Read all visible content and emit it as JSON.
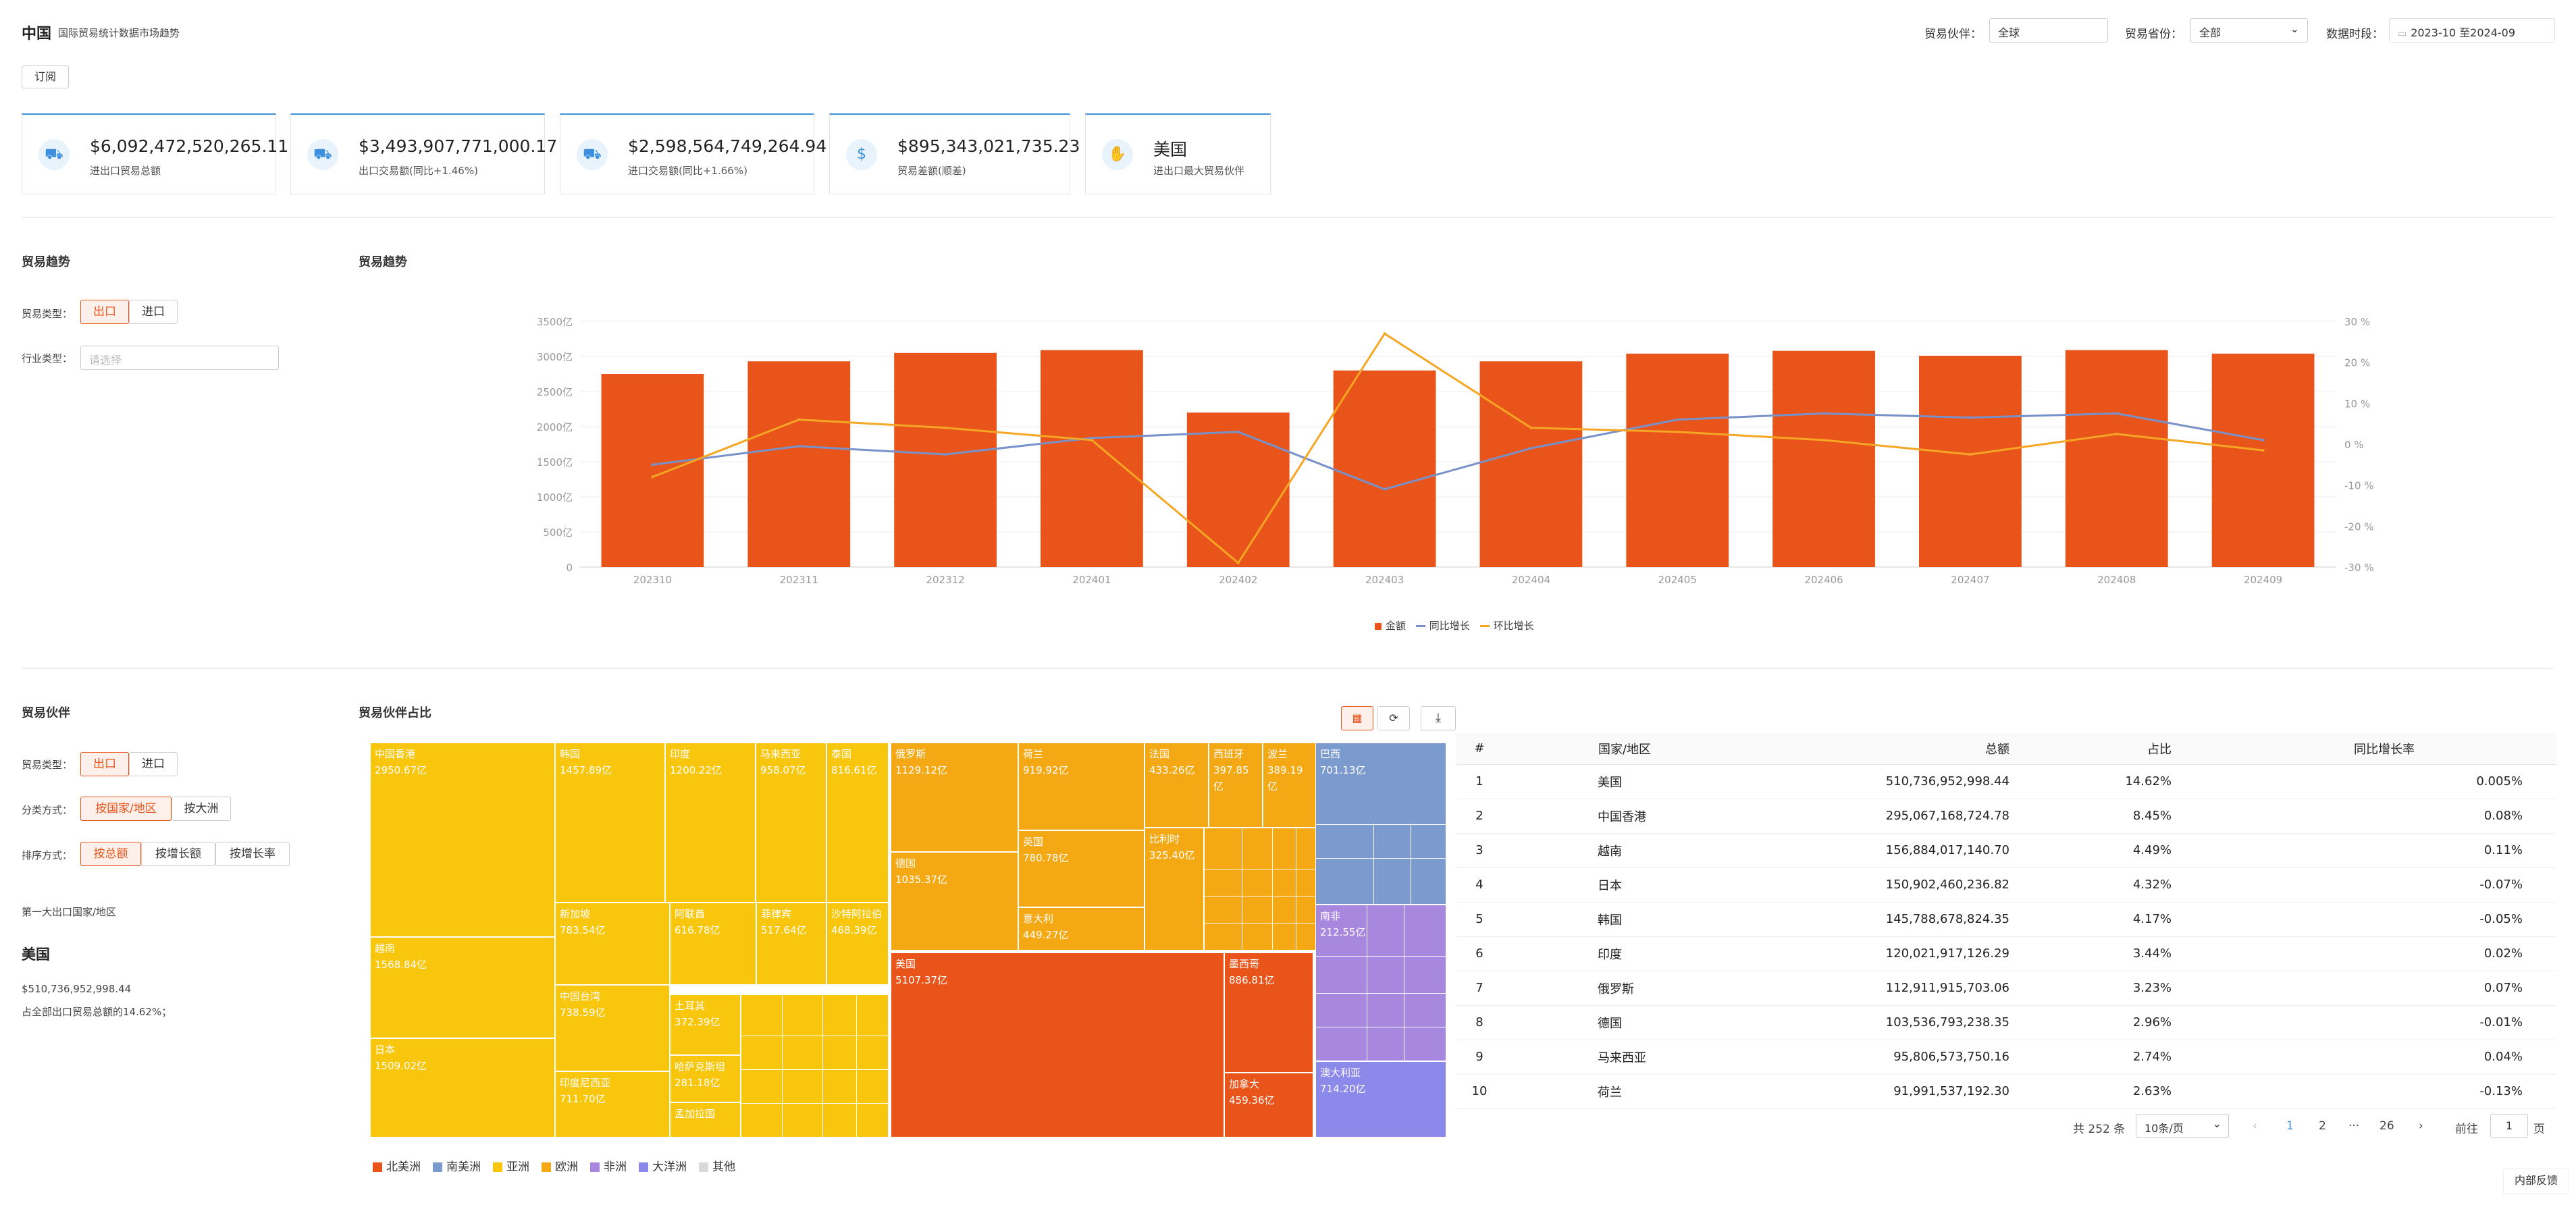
{
  "header": {
    "title": "中国",
    "subtitle": "国际贸易统计数据市场趋势",
    "partner_label": "贸易伙伴：",
    "partner_value": "全球",
    "province_label": "贸易省份：",
    "province_value": "全部",
    "period_label": "数据时段：",
    "period_value": "2023-10 至2024-09",
    "subscribe": "订阅"
  },
  "cards": [
    {
      "icon": "trade-icon",
      "value": "$6,092,472,520,265.11",
      "label": "进出口贸易总额"
    },
    {
      "icon": "export-icon",
      "value": "$3,493,907,771,000.17",
      "label": "出口交易额(同比+1.46%)"
    },
    {
      "icon": "import-icon",
      "value": "$2,598,564,749,264.94",
      "label": "进口交易额(同比+1.66%)"
    },
    {
      "icon": "balance-icon",
      "value": "$895,343,021,735.23",
      "label": "贸易差额(顺差)"
    },
    {
      "icon": "handshake-icon",
      "value": "美国",
      "label": "进出口最大贸易伙伴"
    }
  ],
  "trend_panel": {
    "title": "贸易趋势",
    "chart_title": "贸易趋势",
    "type_label": "贸易类型：",
    "export": "出口",
    "import": "进口",
    "industry_label": "行业类型：",
    "industry_placeholder": "请选择"
  },
  "partner_panel": {
    "title": "贸易伙伴",
    "chart_title": "贸易伙伴占比",
    "type_label": "贸易类型：",
    "export": "出口",
    "import": "进口",
    "classify_label": "分类方式：",
    "by_country": "按国家/地区",
    "by_continent": "按大洲",
    "sort_label": "排序方式：",
    "sort_total": "按总额",
    "sort_growth_amt": "按增长额",
    "sort_growth_rate": "按增长率",
    "top_label": "第一大出口国家/地区",
    "top_country": "美国",
    "top_amount": "$510,736,952,998.44",
    "top_share": "占全部出口贸易总额的14.62%；"
  },
  "chart_data": [
    {
      "type": "bar",
      "categories": [
        "202310",
        "202311",
        "202312",
        "202401",
        "202402",
        "202403",
        "202404",
        "202405",
        "202406",
        "202407",
        "202408",
        "202409"
      ],
      "series": [
        {
          "name": "金额",
          "kind": "bar",
          "axis": "left",
          "color": "#e9541b",
          "values": [
            2750,
            2930,
            3050,
            3090,
            2200,
            2800,
            2930,
            3040,
            3080,
            3010,
            3090,
            3040
          ]
        },
        {
          "name": "同比增长",
          "kind": "line",
          "axis": "right",
          "color": "#7891c9",
          "values": [
            -5,
            -0.5,
            -2.5,
            1.5,
            3,
            -11,
            -1,
            6,
            7.5,
            6.5,
            7.5,
            1
          ]
        },
        {
          "name": "环比增长",
          "kind": "line",
          "axis": "right",
          "color": "#f5a623",
          "values": [
            -8,
            6,
            4,
            1,
            -29,
            27,
            4,
            3,
            1,
            -2.5,
            2.5,
            -1.5
          ]
        }
      ],
      "left_ticks": [
        "0",
        "500亿",
        "1000亿",
        "1500亿",
        "2000亿",
        "2500亿",
        "3000亿",
        "3500亿"
      ],
      "right_ticks": [
        "30 %",
        "20 %",
        "10 %",
        "0 %",
        "-10 %",
        "-20 %",
        "-30 %"
      ],
      "ylim": [
        0,
        3500
      ],
      "y2lim": [
        -30,
        30
      ],
      "grid": true,
      "legend": "bottom"
    },
    {
      "type": "treemap",
      "unit": "亿",
      "legend": [
        {
          "name": "北美洲",
          "color": "#e9541b"
        },
        {
          "name": "南美洲",
          "color": "#7b9bcf"
        },
        {
          "name": "亚洲",
          "color": "#f9c60e"
        },
        {
          "name": "欧洲",
          "color": "#f3a814"
        },
        {
          "name": "非洲",
          "color": "#a887df"
        },
        {
          "name": "大洋洲",
          "color": "#8b89e9"
        },
        {
          "name": "其他",
          "color": "#d9d9d9"
        }
      ],
      "items": [
        {
          "name": "中国香港",
          "value": "2950.67亿"
        },
        {
          "name": "越南",
          "value": "1568.84亿"
        },
        {
          "name": "日本",
          "value": "1509.02亿"
        },
        {
          "name": "韩国",
          "value": "1457.89亿"
        },
        {
          "name": "印度",
          "value": "1200.22亿"
        },
        {
          "name": "马来西亚",
          "value": "958.07亿"
        },
        {
          "name": "泰国",
          "value": "816.61亿"
        },
        {
          "name": "新加坡",
          "value": "783.54亿"
        },
        {
          "name": "阿联酋",
          "value": "616.78亿"
        },
        {
          "name": "菲律宾",
          "value": "517.64亿"
        },
        {
          "name": "沙特阿拉伯",
          "value": "468.39亿"
        },
        {
          "name": "中国台湾",
          "value": "738.59亿"
        },
        {
          "name": "土耳其",
          "value": "372.39亿"
        },
        {
          "name": "印度尼西亚",
          "value": "711.70亿"
        },
        {
          "name": "哈萨克斯坦",
          "value": "281.18亿"
        },
        {
          "name": "孟加拉国",
          "value": ""
        },
        {
          "name": "俄罗斯",
          "value": "1129.12亿"
        },
        {
          "name": "德国",
          "value": "1035.37亿"
        },
        {
          "name": "荷兰",
          "value": "919.92亿"
        },
        {
          "name": "英国",
          "value": "780.78亿"
        },
        {
          "name": "意大利",
          "value": "449.27亿"
        },
        {
          "name": "法国",
          "value": "433.26亿"
        },
        {
          "name": "西班牙",
          "value": "397.85亿"
        },
        {
          "name": "波兰",
          "value": "389.19亿"
        },
        {
          "name": "比利时",
          "value": "325.40亿"
        },
        {
          "name": "美国",
          "value": "5107.37亿"
        },
        {
          "name": "墨西哥",
          "value": "886.81亿"
        },
        {
          "name": "加拿大",
          "value": "459.36亿"
        },
        {
          "name": "巴西",
          "value": "701.13亿"
        },
        {
          "name": "南非",
          "value": "212.55亿"
        },
        {
          "name": "澳大利亚",
          "value": "714.20亿"
        }
      ]
    },
    {
      "type": "table",
      "columns": [
        "#",
        "国家/地区",
        "总额",
        "占比",
        "同比增长率"
      ],
      "rows": [
        [
          "1",
          "美国",
          "510,736,952,998.44",
          "14.62%",
          "0.005%"
        ],
        [
          "2",
          "中国香港",
          "295,067,168,724.78",
          "8.45%",
          "0.08%"
        ],
        [
          "3",
          "越南",
          "156,884,017,140.70",
          "4.49%",
          "0.11%"
        ],
        [
          "4",
          "日本",
          "150,902,460,236.82",
          "4.32%",
          "-0.07%"
        ],
        [
          "5",
          "韩国",
          "145,788,678,824.35",
          "4.17%",
          "-0.05%"
        ],
        [
          "6",
          "印度",
          "120,021,917,126.29",
          "3.44%",
          "0.02%"
        ],
        [
          "7",
          "俄罗斯",
          "112,911,915,703.06",
          "3.23%",
          "0.07%"
        ],
        [
          "8",
          "德国",
          "103,536,793,238.35",
          "2.96%",
          "-0.01%"
        ],
        [
          "9",
          "马来西亚",
          "95,806,573,750.16",
          "2.74%",
          "0.04%"
        ],
        [
          "10",
          "荷兰",
          "91,991,537,192.30",
          "2.63%",
          "-0.13%"
        ]
      ]
    }
  ],
  "pagination": {
    "total": "共 252 条",
    "page_size": "10条/页",
    "p1": "1",
    "p2": "2",
    "ellipsis": "···",
    "last": "26",
    "goto_label": "前往",
    "goto_value": "1",
    "page_unit": "页",
    "prev": "‹",
    "next": "›"
  },
  "feedback": "内部反馈"
}
